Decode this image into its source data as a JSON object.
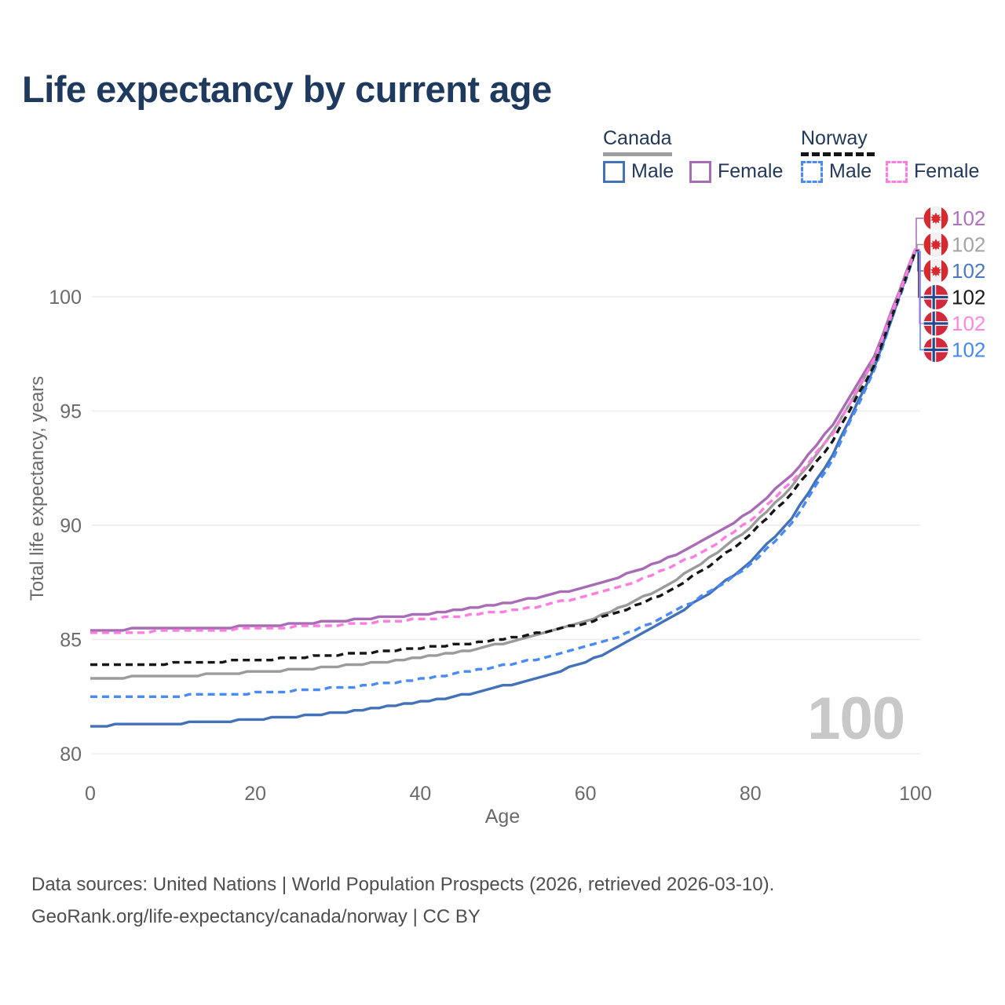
{
  "title": "Life expectancy by current age",
  "watermark": "100",
  "legend": {
    "groups": [
      {
        "label": "Canada",
        "underline_color": "#9e9e9e",
        "dashed": false
      },
      {
        "label": "Norway",
        "underline_color": "#141414",
        "dashed": true
      }
    ],
    "items": [
      {
        "label": "Male",
        "color": "#4472b9",
        "dashed": false
      },
      {
        "label": "Female",
        "color": "#a76cb5",
        "dashed": false
      },
      {
        "label": "Male",
        "color": "#4a8af5",
        "dashed": true
      },
      {
        "label": "Female",
        "color": "#ff7ce0",
        "dashed": true
      }
    ]
  },
  "axis": {
    "x_label": "Age",
    "y_label": "Total life expectancy, years"
  },
  "chart_data": {
    "type": "line",
    "title": "Life expectancy by current age",
    "xlabel": "Age",
    "ylabel": "Total life expectancy, years",
    "x_ticks": [
      0,
      20,
      40,
      60,
      80,
      100
    ],
    "y_ticks": [
      80,
      85,
      90,
      95,
      100
    ],
    "xlim": [
      0,
      100
    ],
    "ylim": [
      79.3,
      103
    ],
    "grid": "horizontal",
    "legend_position": "top-right",
    "ages": [
      0,
      5,
      10,
      15,
      20,
      25,
      30,
      35,
      40,
      45,
      50,
      55,
      60,
      65,
      70,
      75,
      80,
      85,
      90,
      95,
      100
    ],
    "series": [
      {
        "name": "Canada Female",
        "country": "Canada",
        "sex": "Female",
        "color": "#a76cb5",
        "dashed": false,
        "values": [
          85.4,
          85.45,
          85.48,
          85.52,
          85.58,
          85.68,
          85.8,
          85.95,
          86.1,
          86.3,
          86.55,
          86.9,
          87.3,
          87.85,
          88.55,
          89.45,
          90.6,
          92.2,
          94.4,
          97.4,
          102.1
        ]
      },
      {
        "name": "Canada Total",
        "country": "Canada",
        "sex": "Both",
        "color": "#9b9b9b",
        "dashed": false,
        "values": [
          83.3,
          83.35,
          83.4,
          83.48,
          83.57,
          83.68,
          83.82,
          84.0,
          84.22,
          84.48,
          84.82,
          85.25,
          85.8,
          86.5,
          87.4,
          88.55,
          89.9,
          91.7,
          94.05,
          97.2,
          102.07
        ]
      },
      {
        "name": "Canada Male",
        "country": "Canada",
        "sex": "Male",
        "color": "#4472b9",
        "dashed": false,
        "values": [
          81.2,
          81.3,
          81.33,
          81.4,
          81.5,
          81.63,
          81.8,
          82.0,
          82.25,
          82.55,
          82.95,
          83.4,
          84.0,
          84.85,
          85.9,
          87.0,
          88.4,
          90.3,
          93.1,
          96.9,
          102.0
        ]
      },
      {
        "name": "Norway Total",
        "country": "Norway",
        "sex": "Both",
        "color": "#161616",
        "dashed": true,
        "values": [
          83.85,
          83.9,
          83.95,
          84.02,
          84.1,
          84.2,
          84.33,
          84.47,
          84.62,
          84.8,
          85.02,
          85.32,
          85.72,
          86.3,
          87.1,
          88.2,
          89.6,
          91.4,
          93.7,
          97.0,
          102.04
        ]
      },
      {
        "name": "Norway Female",
        "country": "Norway",
        "sex": "Female",
        "color": "#ff7ce0",
        "dashed": true,
        "values": [
          85.3,
          85.33,
          85.37,
          85.42,
          85.48,
          85.55,
          85.64,
          85.75,
          85.88,
          86.03,
          86.23,
          86.5,
          86.88,
          87.4,
          88.1,
          89.0,
          90.2,
          91.9,
          94.0,
          97.25,
          102.08
        ]
      },
      {
        "name": "Norway Male",
        "country": "Norway",
        "sex": "Male",
        "color": "#4a8af5",
        "dashed": true,
        "values": [
          82.45,
          82.5,
          82.53,
          82.58,
          82.65,
          82.75,
          82.88,
          83.05,
          83.28,
          83.55,
          83.85,
          84.2,
          84.65,
          85.25,
          86.05,
          87.05,
          88.25,
          90.05,
          92.9,
          96.8,
          101.98
        ]
      }
    ]
  },
  "annotations": [
    {
      "flag": "canada",
      "series": "Canada Female",
      "value": "102",
      "color": "#ad72bd"
    },
    {
      "flag": "canada",
      "series": "Canada Total",
      "value": "102",
      "color": "#a3a3a3"
    },
    {
      "flag": "canada",
      "series": "Canada Male",
      "value": "102",
      "color": "#4779c4"
    },
    {
      "flag": "norway",
      "series": "Norway Total",
      "value": "102",
      "color": "#1a1a1a"
    },
    {
      "flag": "norway",
      "series": "Norway Female",
      "value": "102",
      "color": "#ff87e2"
    },
    {
      "flag": "norway",
      "series": "Norway Male",
      "value": "102",
      "color": "#4189f2"
    }
  ],
  "source": {
    "line1": "Data sources: United Nations | World Population Prospects (2026, retrieved 2026-03-10).",
    "line2": "GeoRank.org/life-expectancy/canada/norway | CC BY"
  }
}
